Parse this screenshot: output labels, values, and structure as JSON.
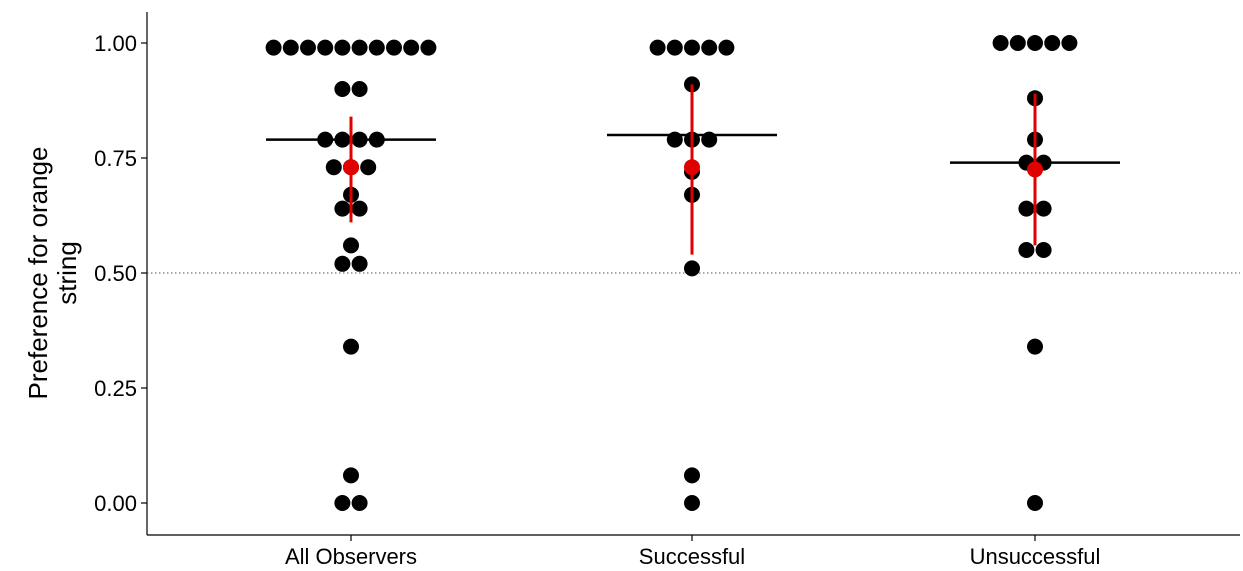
{
  "chart_data": {
    "type": "scatter",
    "subtype": "dot-plot",
    "title": "",
    "xlabel": "",
    "ylabel_lines": [
      "Preference for orange",
      "string"
    ],
    "ylim": [
      0,
      1
    ],
    "yticks": [
      {
        "value": 0.0,
        "label": "0.00"
      },
      {
        "value": 0.25,
        "label": "0.25"
      },
      {
        "value": 0.5,
        "label": "0.50"
      },
      {
        "value": 0.75,
        "label": "0.75"
      },
      {
        "value": 1.0,
        "label": "1.00"
      }
    ],
    "reference_line": {
      "y": 0.5,
      "style": "dotted"
    },
    "grid": false,
    "legend": "none",
    "colors": {
      "points": "#000000",
      "summary": "#e00000",
      "median_line": "#000000"
    },
    "categories": [
      {
        "label": "All Observers",
        "median": 0.79,
        "mean": 0.73,
        "ci": [
          0.61,
          0.84
        ],
        "points": [
          {
            "y": 0.99,
            "n": 10
          },
          {
            "y": 0.9,
            "n": 2
          },
          {
            "y": 0.79,
            "n": 4
          },
          {
            "y": 0.73,
            "n": 3
          },
          {
            "y": 0.67,
            "n": 1
          },
          {
            "y": 0.64,
            "n": 2
          },
          {
            "y": 0.56,
            "n": 1
          },
          {
            "y": 0.52,
            "n": 2
          },
          {
            "y": 0.34,
            "n": 1
          },
          {
            "y": 0.06,
            "n": 1
          },
          {
            "y": 0.0,
            "n": 2
          }
        ]
      },
      {
        "label": "Successful",
        "median": 0.8,
        "mean": 0.73,
        "ci": [
          0.54,
          0.91
        ],
        "points": [
          {
            "y": 0.99,
            "n": 5
          },
          {
            "y": 0.91,
            "n": 1
          },
          {
            "y": 0.79,
            "n": 3
          },
          {
            "y": 0.72,
            "n": 1
          },
          {
            "y": 0.67,
            "n": 1
          },
          {
            "y": 0.51,
            "n": 1
          },
          {
            "y": 0.06,
            "n": 1
          },
          {
            "y": 0.0,
            "n": 1
          }
        ]
      },
      {
        "label": "Unsuccessful",
        "median": 0.74,
        "mean": 0.725,
        "ci": [
          0.56,
          0.89
        ],
        "points": [
          {
            "y": 1.0,
            "n": 5
          },
          {
            "y": 0.88,
            "n": 1
          },
          {
            "y": 0.79,
            "n": 1
          },
          {
            "y": 0.74,
            "n": 2
          },
          {
            "y": 0.64,
            "n": 2
          },
          {
            "y": 0.55,
            "n": 2
          },
          {
            "y": 0.34,
            "n": 1
          },
          {
            "y": 0.0,
            "n": 1
          }
        ]
      }
    ]
  }
}
